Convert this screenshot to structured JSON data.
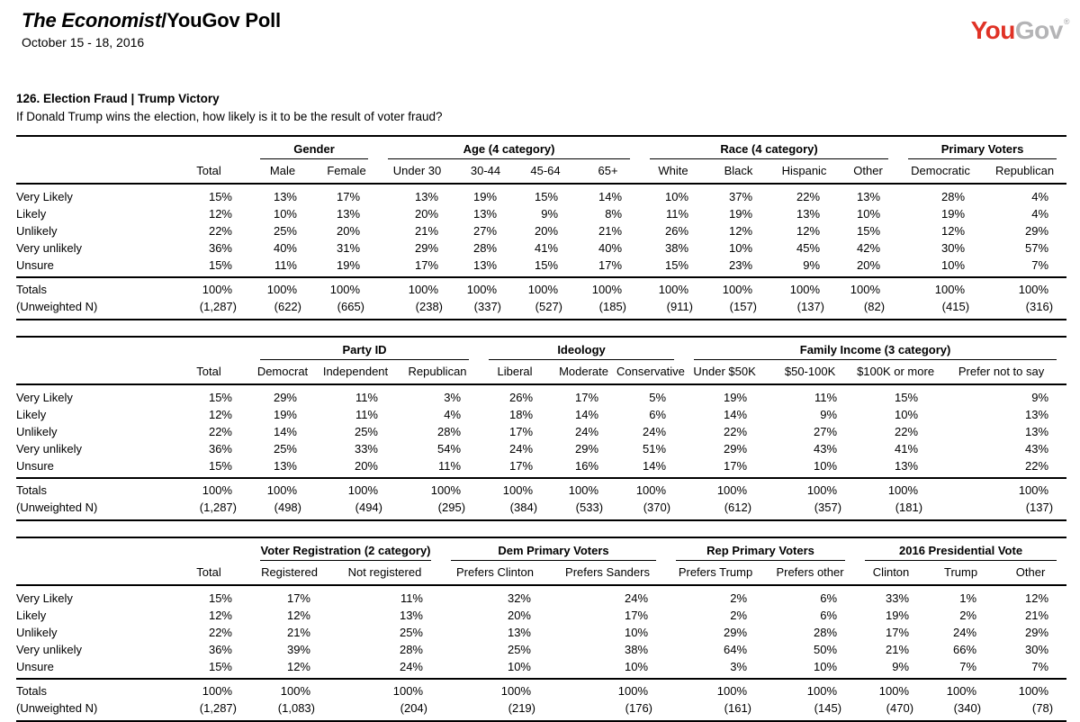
{
  "header": {
    "title_italic": "The Economist",
    "title_rest": "/YouGov Poll",
    "date_range": "October 15 - 18, 2016",
    "logo": {
      "you": "You",
      "gov": "Gov",
      "registered": "®",
      "you_color": "#e03226",
      "gov_color": "#b4b4b6"
    }
  },
  "question": {
    "title": "126. Election Fraud | Trump Victory",
    "text": "If Donald Trump wins the election, how likely is it to be the result of voter fraud?"
  },
  "labels": {
    "totals": "Totals",
    "unweighted": "(Unweighted N)"
  },
  "row_labels": [
    "Very Likely",
    "Likely",
    "Unlikely",
    "Very unlikely",
    "Unsure"
  ],
  "tables": [
    {
      "groups": [
        {
          "label": "",
          "span": 1
        },
        {
          "label": "Gender",
          "span": 2
        },
        {
          "label": "Age (4 category)",
          "span": 4
        },
        {
          "label": "Race (4 category)",
          "span": 4
        },
        {
          "label": "Primary Voters",
          "span": 2
        }
      ],
      "columns": [
        "Total",
        "Male",
        "Female",
        "Under 30",
        "30-44",
        "45-64",
        "65+",
        "White",
        "Black",
        "Hispanic",
        "Other",
        "Democratic",
        "Republican"
      ],
      "rows": [
        [
          "15%",
          "13%",
          "17%",
          "13%",
          "19%",
          "15%",
          "14%",
          "10%",
          "37%",
          "22%",
          "13%",
          "28%",
          "4%"
        ],
        [
          "12%",
          "10%",
          "13%",
          "20%",
          "13%",
          "9%",
          "8%",
          "11%",
          "19%",
          "13%",
          "10%",
          "19%",
          "4%"
        ],
        [
          "22%",
          "25%",
          "20%",
          "21%",
          "27%",
          "20%",
          "21%",
          "26%",
          "12%",
          "12%",
          "15%",
          "12%",
          "29%"
        ],
        [
          "36%",
          "40%",
          "31%",
          "29%",
          "28%",
          "41%",
          "40%",
          "38%",
          "10%",
          "45%",
          "42%",
          "30%",
          "57%"
        ],
        [
          "15%",
          "11%",
          "19%",
          "17%",
          "13%",
          "15%",
          "17%",
          "15%",
          "23%",
          "9%",
          "20%",
          "10%",
          "7%"
        ]
      ],
      "totals": [
        "100%",
        "100%",
        "100%",
        "100%",
        "100%",
        "100%",
        "100%",
        "100%",
        "100%",
        "100%",
        "100%",
        "100%",
        "100%"
      ],
      "unweighted": [
        "(1,287)",
        "(622)",
        "(665)",
        "(238)",
        "(337)",
        "(527)",
        "(185)",
        "(911)",
        "(157)",
        "(137)",
        "(82)",
        "(415)",
        "(316)"
      ]
    },
    {
      "groups": [
        {
          "label": "",
          "span": 1
        },
        {
          "label": "Party ID",
          "span": 3
        },
        {
          "label": "Ideology",
          "span": 3
        },
        {
          "label": "Family Income (3 category)",
          "span": 4
        }
      ],
      "columns": [
        "Total",
        "Democrat",
        "Independent",
        "Republican",
        "Liberal",
        "Moderate",
        "Conservative",
        "Under $50K",
        "$50-100K",
        "$100K or more",
        "Prefer not to say"
      ],
      "rows": [
        [
          "15%",
          "29%",
          "11%",
          "3%",
          "26%",
          "17%",
          "5%",
          "19%",
          "11%",
          "15%",
          "9%"
        ],
        [
          "12%",
          "19%",
          "11%",
          "4%",
          "18%",
          "14%",
          "6%",
          "14%",
          "9%",
          "10%",
          "13%"
        ],
        [
          "22%",
          "14%",
          "25%",
          "28%",
          "17%",
          "24%",
          "24%",
          "22%",
          "27%",
          "22%",
          "13%"
        ],
        [
          "36%",
          "25%",
          "33%",
          "54%",
          "24%",
          "29%",
          "51%",
          "29%",
          "43%",
          "41%",
          "43%"
        ],
        [
          "15%",
          "13%",
          "20%",
          "11%",
          "17%",
          "16%",
          "14%",
          "17%",
          "10%",
          "13%",
          "22%"
        ]
      ],
      "totals": [
        "100%",
        "100%",
        "100%",
        "100%",
        "100%",
        "100%",
        "100%",
        "100%",
        "100%",
        "100%",
        "100%"
      ],
      "unweighted": [
        "(1,287)",
        "(498)",
        "(494)",
        "(295)",
        "(384)",
        "(533)",
        "(370)",
        "(612)",
        "(357)",
        "(181)",
        "(137)"
      ]
    },
    {
      "groups": [
        {
          "label": "",
          "span": 1
        },
        {
          "label": "Voter Registration (2 category)",
          "span": 2
        },
        {
          "label": "Dem Primary Voters",
          "span": 2
        },
        {
          "label": "Rep Primary Voters",
          "span": 2
        },
        {
          "label": "2016 Presidential Vote",
          "span": 3
        }
      ],
      "columns": [
        "Total",
        "Registered",
        "Not registered",
        "Prefers Clinton",
        "Prefers Sanders",
        "Prefers Trump",
        "Prefers other",
        "Clinton",
        "Trump",
        "Other"
      ],
      "rows": [
        [
          "15%",
          "17%",
          "11%",
          "32%",
          "24%",
          "2%",
          "6%",
          "33%",
          "1%",
          "12%"
        ],
        [
          "12%",
          "12%",
          "13%",
          "20%",
          "17%",
          "2%",
          "6%",
          "19%",
          "2%",
          "21%"
        ],
        [
          "22%",
          "21%",
          "25%",
          "13%",
          "10%",
          "29%",
          "28%",
          "17%",
          "24%",
          "29%"
        ],
        [
          "36%",
          "39%",
          "28%",
          "25%",
          "38%",
          "64%",
          "50%",
          "21%",
          "66%",
          "30%"
        ],
        [
          "15%",
          "12%",
          "24%",
          "10%",
          "10%",
          "3%",
          "10%",
          "9%",
          "7%",
          "7%"
        ]
      ],
      "totals": [
        "100%",
        "100%",
        "100%",
        "100%",
        "100%",
        "100%",
        "100%",
        "100%",
        "100%",
        "100%"
      ],
      "unweighted": [
        "(1,287)",
        "(1,083)",
        "(204)",
        "(219)",
        "(176)",
        "(161)",
        "(145)",
        "(470)",
        "(340)",
        "(78)"
      ]
    }
  ]
}
